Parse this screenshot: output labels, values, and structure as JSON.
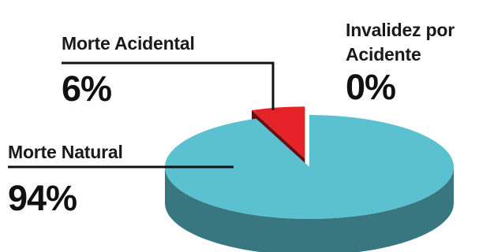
{
  "chart_data": {
    "type": "pie",
    "style": "3d-exploded",
    "categories": [
      "Morte Natural",
      "Morte Acidental",
      "Invalidez por Acidente"
    ],
    "values": [
      94,
      6,
      0
    ],
    "value_labels": [
      "94%",
      "6%",
      "0%"
    ],
    "colors": {
      "Morte Natural": "#5bc0cf",
      "Morte Acidental": "#e52228",
      "Invalidez por Acidente": "#1a1a1a"
    },
    "legend": "none",
    "title": ""
  },
  "labels": {
    "natural_name": "Morte Natural",
    "natural_pct": "94%",
    "acidental_name": "Morte Acidental",
    "acidental_pct": "6%",
    "invalidez_line1": "Invalidez por",
    "invalidez_line2": "Acidente",
    "invalidez_pct": "0%"
  }
}
